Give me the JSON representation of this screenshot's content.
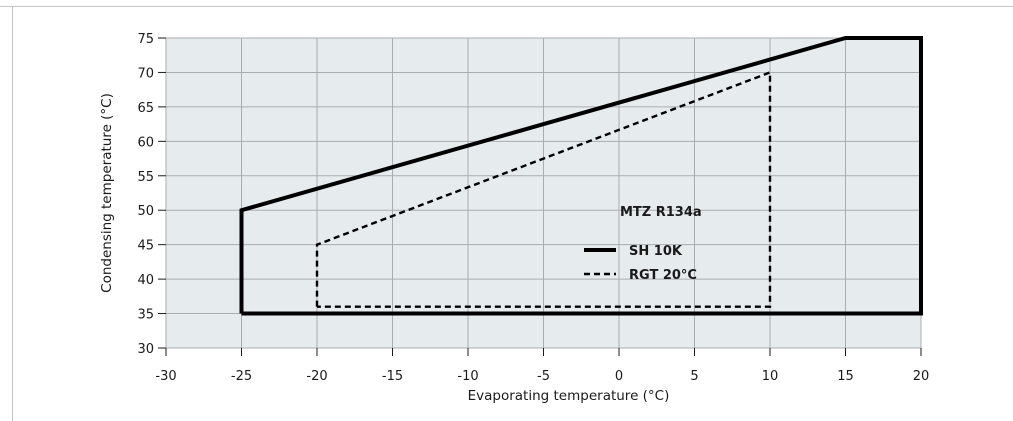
{
  "chart_data": {
    "type": "line",
    "title": "MTZ R134a",
    "xlabel": "Evaporating temperature (°C)",
    "ylabel": "Condensing temperature (°C)",
    "xlim": [
      -30,
      20
    ],
    "ylim": [
      30,
      75
    ],
    "xticks": [
      -30,
      -25,
      -20,
      -15,
      -10,
      -5,
      0,
      5,
      10,
      15,
      20
    ],
    "yticks": [
      30,
      35,
      40,
      45,
      50,
      55,
      60,
      65,
      70,
      75
    ],
    "grid": true,
    "background": "#e6ebee",
    "legend_position": "inside-right",
    "series": [
      {
        "name": "SH 10K",
        "style": "solid",
        "color": "#000000",
        "points": [
          [
            -25,
            35
          ],
          [
            -25,
            50
          ],
          [
            15,
            75
          ],
          [
            20,
            75
          ],
          [
            20,
            35
          ],
          [
            -25,
            35
          ]
        ]
      },
      {
        "name": "RGT 20°C",
        "style": "dashed",
        "color": "#000000",
        "points": [
          [
            -20,
            36
          ],
          [
            -20,
            45
          ],
          [
            10,
            70
          ],
          [
            10,
            36
          ],
          [
            -20,
            36
          ]
        ]
      }
    ]
  }
}
